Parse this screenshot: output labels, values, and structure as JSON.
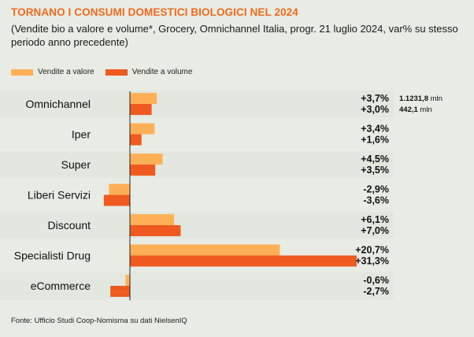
{
  "title": "TORNANO I CONSUMI DOMESTICI BIOLOGICI NEL 2024",
  "subtitle": "(Vendite bio a valore e volume*, Grocery, Omnichannel Italia, progr. 21 luglio 2024, var% su stesso periodo anno precedente)",
  "source": "Fonte: Ufficio Studi Coop-Nomisma su dati NielsenIQ",
  "colors": {
    "valore": "#ffb057",
    "volume": "#ee5a1f",
    "title": "#ee6a1f"
  },
  "chart_data": {
    "type": "bar",
    "orientation": "horizontal",
    "categories": [
      "Omnichannel",
      "Iper",
      "Super",
      "Liberi Servizi",
      "Discount",
      "Specialisti Drug",
      "eCommerce"
    ],
    "series": [
      {
        "name": "Vendite a valore",
        "values": [
          3.7,
          3.4,
          4.5,
          -2.9,
          6.1,
          20.7,
          -0.6
        ],
        "labels": [
          "+3,7%",
          "+3,4%",
          "+4,5%",
          "-2,9%",
          "+6,1%",
          "+20,7%",
          "-0,6%"
        ]
      },
      {
        "name": "Vendite a volume",
        "values": [
          3.0,
          1.6,
          3.5,
          -3.6,
          7.0,
          31.3,
          -2.7
        ],
        "labels": [
          "+3,0%",
          "+1,6%",
          "+3,5%",
          "-3,6%",
          "+7,0%",
          "+31,3%",
          "-2,7%"
        ]
      }
    ],
    "annotations": [
      {
        "category": "Omnichannel",
        "series": "Vendite a valore",
        "bold": "1.1231,8",
        "unit": " mln"
      },
      {
        "category": "Omnichannel",
        "series": "Vendite a volume",
        "bold": "442,1",
        "unit": " mln"
      }
    ],
    "xlim": [
      -3.6,
      31.3
    ],
    "legend": "top-left"
  }
}
